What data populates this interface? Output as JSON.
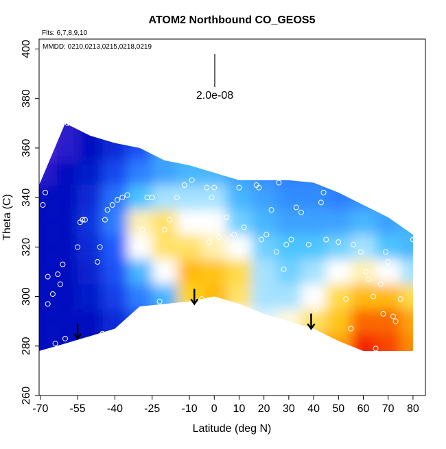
{
  "chart_data": {
    "type": "heatmap",
    "title": "ATOM2 Northbound CO_GEOS5",
    "subtitle": "Flts: 6,7,8,9,10",
    "annotation": "MMDD: 0210,0213,0215,0218,0219",
    "scale_label": "2.0e-08",
    "x_label": "Latitude (deg N)",
    "y_label": "Theta (C)",
    "xlim": [
      -70.5,
      85
    ],
    "ylim": [
      260,
      404
    ],
    "xticks": [
      -70,
      -55,
      -40,
      -25,
      -10,
      0,
      10,
      20,
      30,
      40,
      50,
      60,
      70,
      80
    ],
    "yticks": [
      260,
      280,
      300,
      320,
      340,
      360,
      380,
      400
    ],
    "x": [
      -70,
      -60,
      -50,
      -40,
      -30,
      -20,
      -10,
      0,
      10,
      20,
      30,
      40,
      50,
      60,
      70,
      80
    ],
    "y": [
      280,
      290,
      300,
      310,
      320,
      330,
      340,
      350,
      360,
      370
    ],
    "z": [
      [
        55,
        55,
        55,
        55,
        55,
        55,
        55,
        50,
        45,
        45
      ],
      [
        55,
        55,
        55,
        55,
        55,
        55,
        55,
        55,
        50,
        50
      ],
      [
        55,
        55,
        58,
        60,
        62,
        65,
        62,
        58,
        55,
        55
      ],
      [
        60,
        62,
        68,
        72,
        75,
        80,
        78,
        70,
        62,
        60
      ],
      [
        70,
        72,
        80,
        88,
        100,
        105,
        90,
        80,
        72,
        null
      ],
      [
        75,
        80,
        88,
        100,
        110,
        110,
        95,
        85,
        null,
        null
      ],
      [
        90,
        105,
        115,
        120,
        110,
        100,
        95,
        88,
        null,
        null
      ],
      [
        100,
        118,
        120,
        118,
        105,
        100,
        95,
        88,
        null,
        null
      ],
      [
        100,
        100,
        110,
        112,
        100,
        92,
        88,
        85,
        null,
        null
      ],
      [
        108,
        98,
        95,
        95,
        92,
        88,
        85,
        82,
        null,
        null
      ],
      [
        118,
        102,
        95,
        92,
        90,
        85,
        82,
        80,
        null,
        null
      ],
      [
        125,
        110,
        100,
        95,
        90,
        85,
        82,
        80,
        null,
        null
      ],
      [
        125,
        118,
        112,
        100,
        92,
        85,
        80,
        null,
        null,
        null
      ],
      [
        145,
        135,
        120,
        105,
        95,
        88,
        82,
        null,
        null,
        null
      ],
      [
        140,
        135,
        120,
        100,
        90,
        85,
        null,
        null,
        null,
        null
      ],
      [
        130,
        125,
        112,
        95,
        88,
        null,
        null,
        null,
        null,
        null
      ]
    ],
    "theta_top": [
      345,
      370,
      365,
      362,
      360,
      355,
      353,
      350,
      347,
      347,
      347,
      346,
      342,
      337,
      332,
      325
    ],
    "theta_bottom": [
      278,
      281,
      284,
      287,
      296,
      297,
      298,
      300,
      297,
      293,
      290,
      287,
      282,
      278,
      278,
      278
    ],
    "colorscale": [
      [
        40,
        "#7b2fe0"
      ],
      [
        55,
        "#0010c0"
      ],
      [
        75,
        "#1e5cff"
      ],
      [
        90,
        "#4cc4ff"
      ],
      [
        100,
        "#ffffff"
      ],
      [
        115,
        "#ffd21a"
      ],
      [
        130,
        "#ff8a00"
      ],
      [
        150,
        "#f00000"
      ]
    ],
    "points": {
      "x": [
        -68,
        -69,
        -67,
        -67,
        -66,
        -65,
        -64,
        -63,
        -62,
        -61,
        -60,
        -59,
        -57,
        -55,
        -54,
        -53,
        -52,
        -47,
        -46,
        -45,
        -44,
        -43,
        -41,
        -39,
        -37,
        -35,
        -31,
        -29,
        -27,
        -25,
        -22,
        -20,
        -18,
        -15,
        -12,
        -9,
        -5,
        -3,
        -2,
        -1,
        0,
        2,
        5,
        8,
        10,
        12,
        17,
        18,
        19,
        21,
        23,
        25,
        26,
        28,
        29,
        31,
        33,
        35,
        38,
        41,
        43,
        44,
        45,
        48,
        49,
        50,
        53,
        55,
        56,
        59,
        61,
        62,
        64,
        65,
        67,
        68,
        69,
        70,
        72,
        73,
        75,
        80,
        81
      ],
      "y": [
        342,
        337,
        297,
        308,
        278,
        301,
        281,
        309,
        305,
        313,
        283,
        370,
        370,
        320,
        330,
        331,
        331,
        314,
        320,
        285,
        331,
        335,
        337,
        339,
        340,
        341,
        320,
        327,
        340,
        340,
        298,
        327,
        331,
        340,
        345,
        347,
        299,
        344,
        322,
        340,
        344,
        324,
        332,
        325,
        344,
        328,
        345,
        344,
        323,
        325,
        335,
        318,
        346,
        311,
        321,
        323,
        336,
        334,
        321,
        295,
        338,
        342,
        323,
        310,
        309,
        322,
        299,
        287,
        321,
        318,
        310,
        307,
        300,
        279,
        305,
        293,
        318,
        314,
        292,
        290,
        299,
        323,
        278
      ]
    },
    "arrows": {
      "x": [
        -55,
        -8,
        39
      ],
      "y": [
        283,
        297,
        287
      ]
    }
  }
}
